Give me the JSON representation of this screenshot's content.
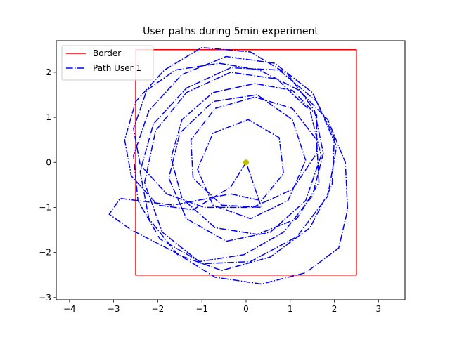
{
  "chart_data": {
    "type": "line",
    "title": "User paths during 5min experiment",
    "xlabel": "",
    "ylabel": "",
    "xlim": [
      -4.3,
      3.6
    ],
    "ylim": [
      -3.05,
      2.7
    ],
    "xticks": [
      -4,
      -3,
      -2,
      -1,
      0,
      1,
      2,
      3
    ],
    "yticks": [
      -3,
      -2,
      -1,
      0,
      1,
      2
    ],
    "grid": false,
    "legend": {
      "placement": "top-left",
      "entries": [
        {
          "label": "Border",
          "color": "#ff0000",
          "style": "solid"
        },
        {
          "label": "Path User 1",
          "color": "#0000ff",
          "style": "dashdot"
        }
      ]
    },
    "series": [
      {
        "name": "Border",
        "color": "#ff0000",
        "style": "solid",
        "points": [
          [
            -2.5,
            2.5
          ],
          [
            2.5,
            2.5
          ],
          [
            2.5,
            -2.5
          ],
          [
            -2.5,
            -2.5
          ],
          [
            -2.5,
            2.5
          ]
        ]
      },
      {
        "name": "Path User 1",
        "color": "#0000ff",
        "style": "dashdot",
        "points": [
          [
            0,
            0
          ],
          [
            -0.35,
            -0.55
          ],
          [
            -1.2,
            -1.05
          ],
          [
            -2.0,
            -0.95
          ],
          [
            -2.6,
            -0.3
          ],
          [
            -2.75,
            0.5
          ],
          [
            -2.5,
            1.35
          ],
          [
            -1.85,
            2.05
          ],
          [
            -1.0,
            2.55
          ],
          [
            0.1,
            2.45
          ],
          [
            0.95,
            1.95
          ],
          [
            1.55,
            1.15
          ],
          [
            1.75,
            0.2
          ],
          [
            1.5,
            -0.75
          ],
          [
            0.85,
            -1.55
          ],
          [
            -0.05,
            -2.05
          ],
          [
            -1.05,
            -2.2
          ],
          [
            -1.95,
            -1.7
          ],
          [
            -2.45,
            -0.85
          ],
          [
            -2.55,
            0.15
          ],
          [
            -2.2,
            1.15
          ],
          [
            -1.45,
            1.95
          ],
          [
            -0.45,
            2.35
          ],
          [
            0.65,
            2.2
          ],
          [
            1.5,
            1.55
          ],
          [
            2.0,
            0.55
          ],
          [
            1.95,
            -0.5
          ],
          [
            1.45,
            -1.45
          ],
          [
            0.55,
            -2.1
          ],
          [
            -0.55,
            -2.4
          ],
          [
            -1.55,
            -2.05
          ],
          [
            -2.2,
            -1.25
          ],
          [
            -2.4,
            -0.2
          ],
          [
            -2.1,
            0.85
          ],
          [
            -1.35,
            1.65
          ],
          [
            -0.35,
            2.1
          ],
          [
            0.75,
            2.05
          ],
          [
            1.6,
            1.35
          ],
          [
            2.05,
            0.35
          ],
          [
            1.85,
            -0.75
          ],
          [
            1.15,
            -1.65
          ],
          [
            0.1,
            -2.2
          ],
          [
            -1.0,
            -2.25
          ],
          [
            -1.9,
            -1.55
          ],
          [
            -2.3,
            -0.45
          ],
          [
            -2.05,
            0.7
          ],
          [
            -1.35,
            1.55
          ],
          [
            -0.35,
            2.0
          ],
          [
            0.7,
            1.85
          ],
          [
            1.45,
            1.15
          ],
          [
            1.7,
            0.15
          ],
          [
            1.35,
            -0.85
          ],
          [
            0.55,
            -1.55
          ],
          [
            -0.45,
            -1.75
          ],
          [
            -1.35,
            -1.25
          ],
          [
            -1.75,
            -0.35
          ],
          [
            -1.5,
            0.65
          ],
          [
            -0.75,
            1.35
          ],
          [
            0.25,
            1.5
          ],
          [
            1.05,
            0.95
          ],
          [
            1.35,
            0.05
          ],
          [
            0.95,
            -0.85
          ],
          [
            0.1,
            -1.25
          ],
          [
            -0.75,
            -0.95
          ],
          [
            -1.1,
            -0.15
          ],
          [
            -0.75,
            0.65
          ],
          [
            0.05,
            0.95
          ],
          [
            0.75,
            0.55
          ],
          [
            0.85,
            -0.25
          ],
          [
            0.35,
            -0.85
          ],
          [
            -0.35,
            -0.7
          ],
          [
            -1.65,
            -0.95
          ],
          [
            -2.85,
            -0.8
          ],
          [
            -3.1,
            -1.15
          ],
          [
            -2.6,
            -1.5
          ],
          [
            -1.6,
            -2.0
          ],
          [
            -0.7,
            -2.55
          ],
          [
            0.35,
            -2.7
          ],
          [
            1.35,
            -2.45
          ],
          [
            2.1,
            -1.9
          ],
          [
            2.3,
            -1.05
          ],
          [
            2.25,
            0.0
          ],
          [
            1.85,
            0.95
          ],
          [
            1.2,
            1.6
          ],
          [
            0.3,
            2.05
          ],
          [
            -0.6,
            2.2
          ],
          [
            -1.6,
            2.05
          ],
          [
            -2.25,
            1.6
          ],
          [
            -2.55,
            0.75
          ],
          [
            -2.4,
            -0.05
          ],
          [
            -1.8,
            -0.7
          ],
          [
            -0.95,
            -1.0
          ],
          [
            0.15,
            -1.0
          ],
          [
            1.05,
            -0.6
          ],
          [
            1.6,
            0.2
          ],
          [
            1.6,
            1.05
          ],
          [
            1.05,
            1.6
          ],
          [
            0.2,
            1.75
          ],
          [
            -0.75,
            1.55
          ],
          [
            -1.45,
            0.95
          ],
          [
            -1.7,
            0.1
          ],
          [
            -1.45,
            -0.8
          ],
          [
            -0.7,
            -1.45
          ],
          [
            0.25,
            -1.6
          ],
          [
            1.15,
            -1.25
          ],
          [
            1.65,
            -0.45
          ],
          [
            1.6,
            0.5
          ],
          [
            1.05,
            1.2
          ],
          [
            0.2,
            1.45
          ],
          [
            -0.7,
            1.2
          ],
          [
            -1.25,
            0.5
          ],
          [
            -1.2,
            -0.35
          ],
          [
            -0.55,
            -0.95
          ],
          [
            0.35,
            -1.0
          ],
          [
            0.0,
            0.0
          ]
        ]
      }
    ],
    "markers": [
      {
        "x": 0,
        "y": 0,
        "color": "#bfbf00"
      }
    ]
  }
}
